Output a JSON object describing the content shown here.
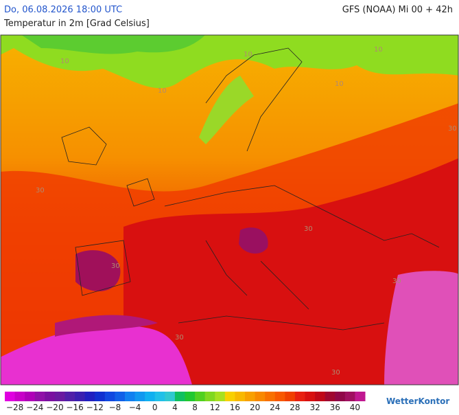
{
  "header": {
    "datetime": "Do, 06.08.2026 18:00 UTC",
    "model": "GFS (NOAA) Mi 00 + 42h",
    "title": "Temperatur in 2m [Grad Celsius]"
  },
  "map": {
    "contour_labels": [
      "10",
      "10",
      "10",
      "10",
      "10",
      "30",
      "30",
      "30",
      "30",
      "30",
      "30",
      "30"
    ]
  },
  "legend": {
    "ticks": [
      "−28",
      "−24",
      "−20",
      "−16",
      "−12",
      "−8",
      "−4",
      "0",
      "4",
      "8",
      "12",
      "16",
      "20",
      "24",
      "28",
      "32",
      "36",
      "40"
    ]
  },
  "logo": "WetterKontor"
}
